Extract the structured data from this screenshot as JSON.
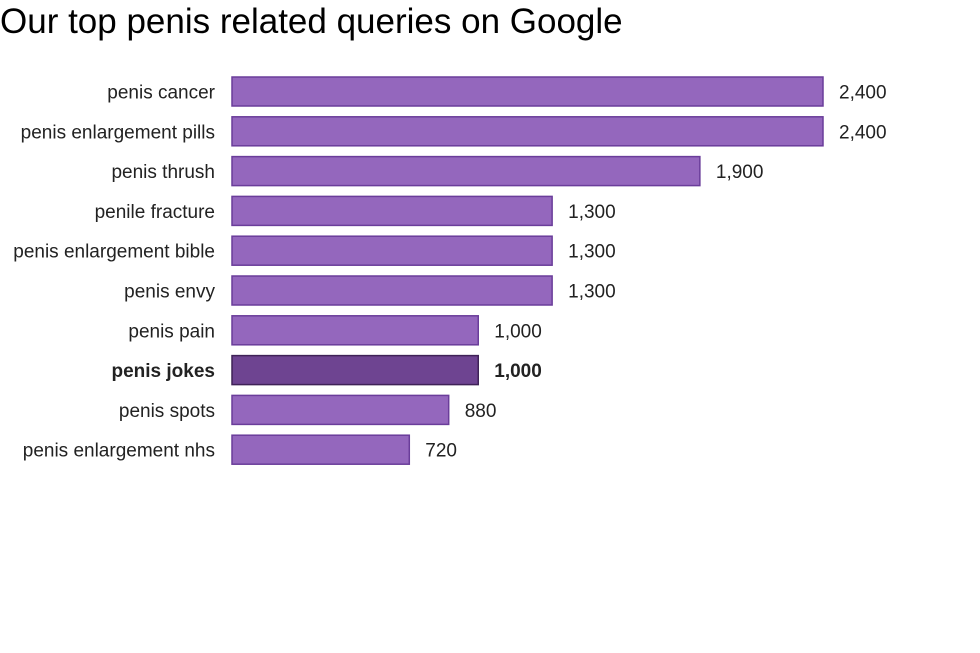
{
  "chart_data": {
    "type": "bar",
    "orientation": "horizontal",
    "title": "Our top penis related queries on Google",
    "categories": [
      "penis cancer",
      "penis enlargement pills",
      "penis thrush",
      "penile fracture",
      "penis enlargement bible",
      "penis envy",
      "penis pain",
      "penis jokes",
      "penis spots",
      "penis enlargement nhs"
    ],
    "values": [
      2400,
      2400,
      1900,
      1300,
      1300,
      1300,
      1000,
      1000,
      880,
      720
    ],
    "value_labels": [
      "2,400",
      "2,400",
      "1,900",
      "1,300",
      "1,300",
      "1,300",
      "1,000",
      "1,000",
      "880",
      "720"
    ],
    "highlighted": "penis jokes",
    "xlabel": "",
    "ylabel": "",
    "xlim": [
      0,
      2400
    ],
    "grid": false,
    "legend": "none"
  },
  "colors": {
    "bar": "#9467bd",
    "bar_stroke": "#6a3d9a",
    "highlight": "#6e4491",
    "highlight_stroke": "#3f2257"
  }
}
